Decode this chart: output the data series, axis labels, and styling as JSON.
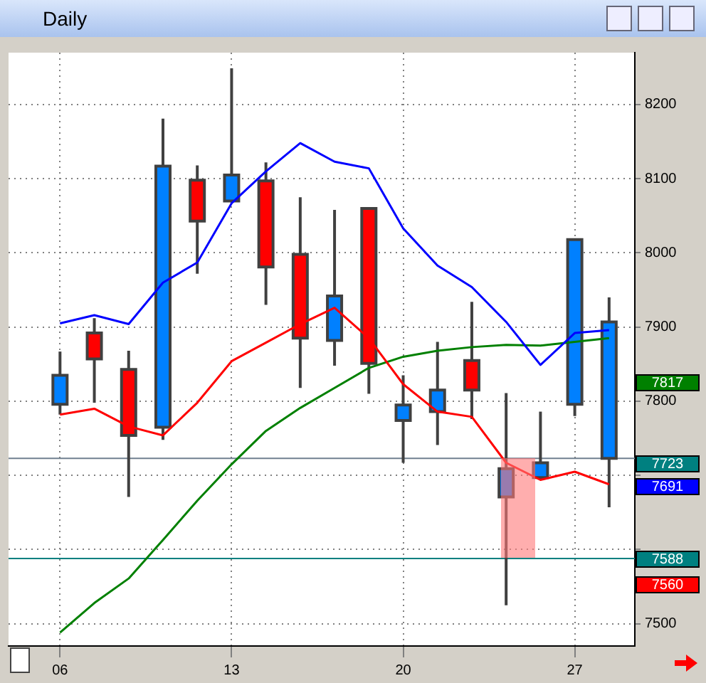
{
  "chart_data": {
    "type": "candlestick",
    "title": "Daily",
    "categories": [
      "06",
      null,
      null,
      null,
      null,
      "13",
      null,
      null,
      null,
      null,
      "20",
      null,
      null,
      null,
      null,
      "27",
      null
    ],
    "ohlc": [
      [
        7796,
        7867,
        7782,
        7835
      ],
      [
        7892,
        7912,
        7798,
        7857
      ],
      [
        7843,
        7868,
        7671,
        7754
      ],
      [
        7765,
        8181,
        7748,
        8117
      ],
      [
        8098,
        8118,
        7972,
        8043
      ],
      [
        8070,
        8249,
        8068,
        8105
      ],
      [
        8097,
        8122,
        7930,
        7981
      ],
      [
        7998,
        8075,
        7818,
        7885
      ],
      [
        7882,
        8058,
        7848,
        7942
      ],
      [
        8060,
        8060,
        7810,
        7851
      ],
      [
        7774,
        7835,
        7717,
        7795
      ],
      [
        7786,
        7880,
        7741,
        7815
      ],
      [
        7855,
        7934,
        7776,
        7815
      ],
      [
        7671,
        7811,
        7525,
        7709
      ],
      [
        7697,
        7786,
        7697,
        7717
      ],
      [
        7796,
        8018,
        7780,
        8018
      ],
      [
        7723,
        7940,
        7657,
        7907
      ]
    ],
    "colors": [
      "#0080ff",
      "#ff0000",
      "#ff0000",
      "#0080ff",
      "#ff0000",
      "#0080ff",
      "#ff0000",
      "#ff0000",
      "#0080ff",
      "#ff0000",
      "#0080ff",
      "#0080ff",
      "#ff0000",
      "#0080ff",
      "#0080ff",
      "#0080ff",
      "#0080ff"
    ],
    "series": [
      {
        "type": "line",
        "color": "#0000ff",
        "values": [
          7905,
          7916,
          7904,
          7960,
          7987,
          8067,
          8110,
          8148,
          8123,
          8114,
          8033,
          7983,
          7954,
          7907,
          7849,
          7892,
          7896
        ]
      },
      {
        "type": "line",
        "color": "#ff0000",
        "values": [
          7782,
          7790,
          7766,
          7754,
          7798,
          7854,
          7879,
          7904,
          7926,
          7885,
          7823,
          7786,
          7779,
          7717,
          7694,
          7705,
          7688
        ]
      },
      {
        "type": "line",
        "color": "#008000",
        "values": [
          7488,
          7528,
          7561,
          7613,
          7666,
          7715,
          7760,
          7791,
          7818,
          7845,
          7860,
          7868,
          7873,
          7876,
          7875,
          7880,
          7885
        ]
      }
    ],
    "ylim": [
      7470,
      8270
    ],
    "yticks": [
      7500,
      {
        "value": 7600,
        "label": null
      },
      {
        "value": 7700,
        "label": null
      },
      7800,
      7900,
      8000,
      8100,
      8200
    ],
    "grid": true,
    "ref_lines": [
      {
        "axis": "y",
        "value": 7723,
        "color": "#708090"
      },
      {
        "axis": "y",
        "value": 7588,
        "color": "#008080"
      }
    ],
    "annotations": [
      "7817",
      "7723",
      "7691",
      "7588",
      "7560"
    ]
  }
}
